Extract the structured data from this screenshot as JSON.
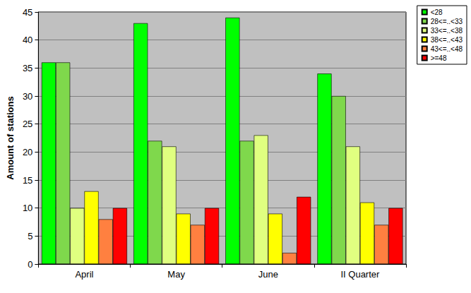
{
  "chart_data": {
    "type": "bar",
    "y_label": "Amount of stations",
    "categories": [
      "April",
      "May",
      "June",
      "II Quarter"
    ],
    "series": [
      {
        "name": "<28",
        "color": "#00ff00",
        "values": [
          36,
          43,
          44,
          34
        ]
      },
      {
        "name": "28<=..<33",
        "color": "#7fd84c",
        "values": [
          36,
          22,
          22,
          30
        ]
      },
      {
        "name": "33<=..<38",
        "color": "#e0ff80",
        "values": [
          10,
          21,
          23,
          21
        ]
      },
      {
        "name": "38<=..<43",
        "color": "#ffff00",
        "values": [
          13,
          9,
          9,
          11
        ]
      },
      {
        "name": "43<=..<48",
        "color": "#ff8040",
        "values": [
          8,
          7,
          2,
          7
        ]
      },
      {
        "name": ">=48",
        "color": "#ff0000",
        "values": [
          10,
          10,
          12,
          10
        ]
      }
    ],
    "ylim": [
      0,
      45
    ],
    "yticks": [
      0,
      5,
      10,
      15,
      20,
      25,
      30,
      35,
      40,
      45
    ],
    "grid": true,
    "legend": "top-right"
  }
}
